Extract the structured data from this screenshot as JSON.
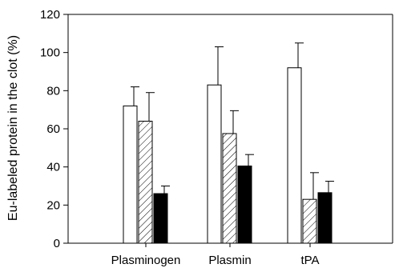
{
  "chart_data": {
    "type": "bar",
    "title": "",
    "xlabel": "",
    "ylabel": "Eu-labeled protein in the clot (%)",
    "ylim": [
      0,
      120
    ],
    "yticks": [
      "0",
      "20",
      "40",
      "60",
      "80",
      "100",
      "120"
    ],
    "categories": [
      "Plasminogen",
      "Plasmin",
      "tPA"
    ],
    "series": [
      {
        "fill": "white",
        "values": [
          72,
          83,
          92
        ],
        "errors": [
          10,
          20,
          13
        ]
      },
      {
        "fill": "hatched",
        "values": [
          64,
          57.5,
          23
        ],
        "errors": [
          15,
          12,
          14
        ]
      },
      {
        "fill": "black",
        "values": [
          26,
          40.5,
          26.5
        ],
        "errors": [
          4,
          6,
          6
        ]
      }
    ],
    "grid": false,
    "legend": "none"
  }
}
